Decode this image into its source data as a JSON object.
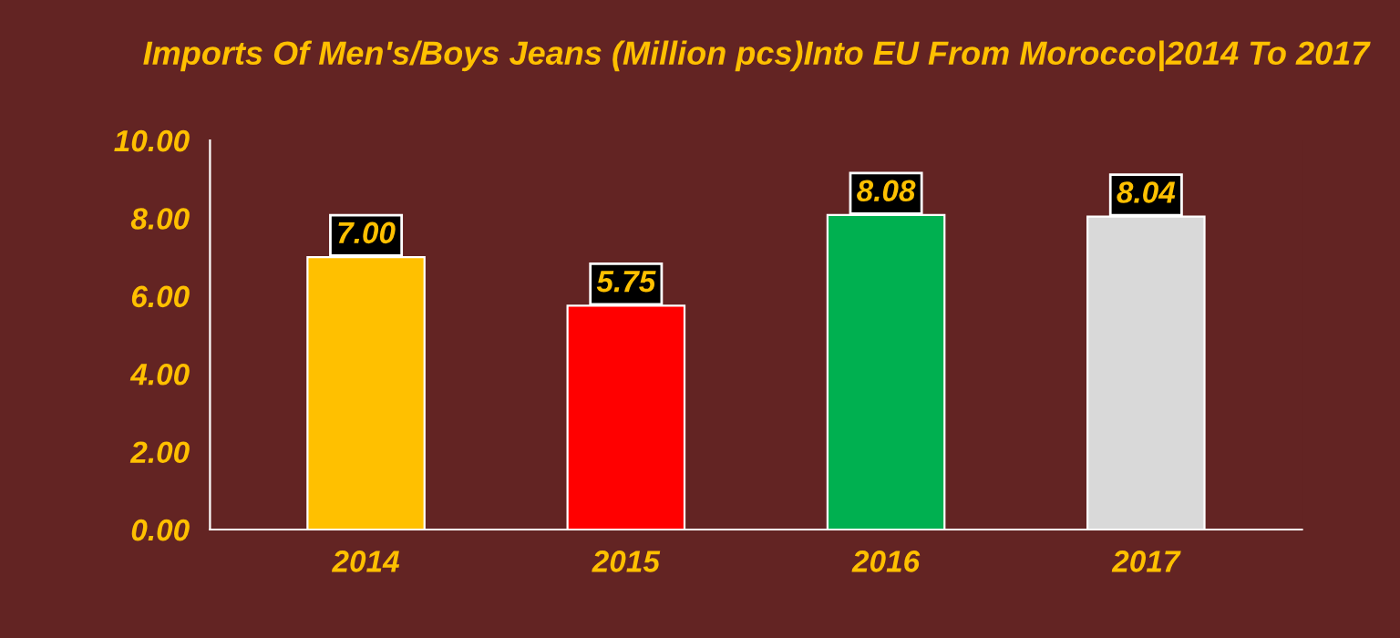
{
  "chart_data": {
    "type": "bar",
    "title": "Imports Of Men's/Boys Jeans (Million pcs)Into EU From Morocco|2014 To 2017",
    "categories": [
      "2014",
      "2015",
      "2016",
      "2017"
    ],
    "values": [
      7.0,
      5.75,
      8.08,
      8.04
    ],
    "colors": [
      "#ffc000",
      "#ff0000",
      "#00b050",
      "#d9d9d9"
    ],
    "value_labels": [
      "7.00",
      "5.75",
      "8.08",
      "8.04"
    ],
    "ylim": [
      0,
      10
    ],
    "yticks": [
      {
        "value": 0,
        "label": "0.00"
      },
      {
        "value": 2,
        "label": "2.00"
      },
      {
        "value": 4,
        "label": "4.00"
      },
      {
        "value": 6,
        "label": "6.00"
      },
      {
        "value": 8,
        "label": "8.00"
      },
      {
        "value": 10,
        "label": "10.00"
      }
    ],
    "grid": false,
    "legend": false
  }
}
